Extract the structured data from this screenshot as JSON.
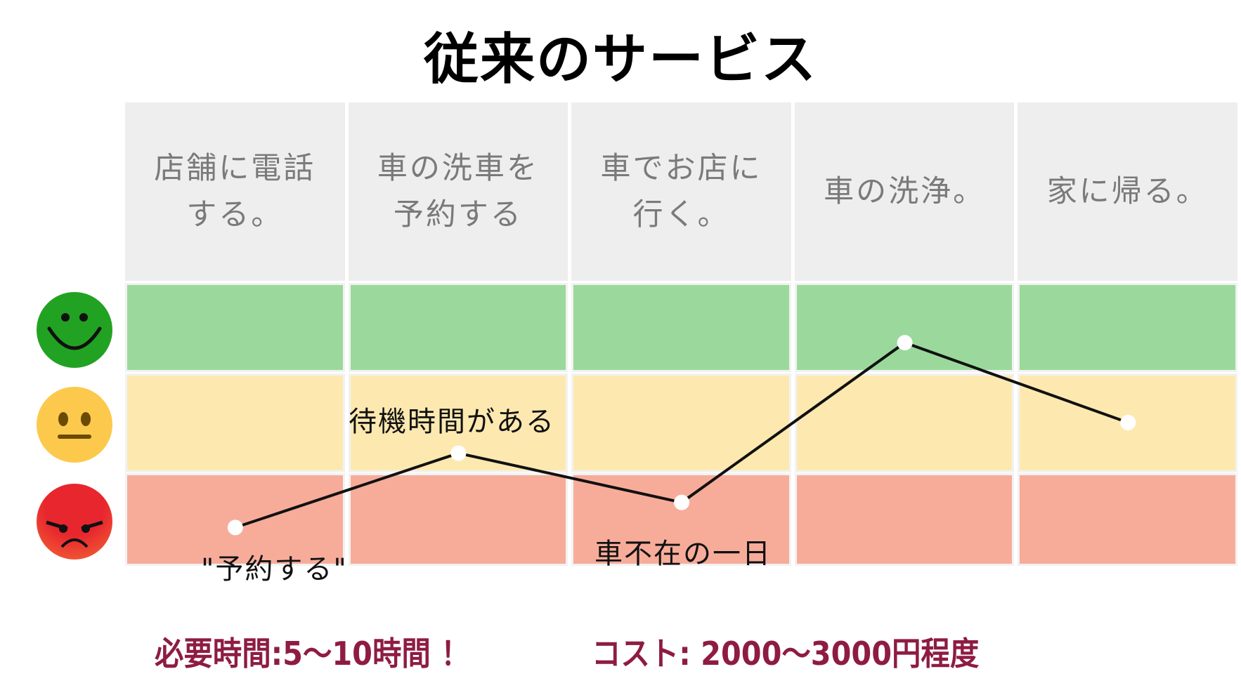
{
  "title": "従来のサービス",
  "steps": [
    {
      "label": "店舗に電話\nする。",
      "satisfaction": 0.39
    },
    {
      "label": "車の洗車を\n予約する",
      "satisfaction": 1.19
    },
    {
      "label": "車でお店に\n行く。",
      "satisfaction": 0.66
    },
    {
      "label": "車の洗浄。",
      "satisfaction": 2.38
    },
    {
      "label": "家に帰る。",
      "satisfaction": 1.52
    }
  ],
  "levels": [
    {
      "name": "happy",
      "icon": "smiley-happy-icon",
      "color": "#9ad99b"
    },
    {
      "name": "neutral",
      "icon": "smiley-neutral-icon",
      "color": "#fde9b0"
    },
    {
      "name": "angry",
      "icon": "smiley-angry-icon",
      "color": "#f7ac9a"
    }
  ],
  "annotations": {
    "wait": "待機時間がある",
    "reserve": "\"予約する\"",
    "no_car": "車不在の一日"
  },
  "footer": {
    "time": "必要時間:5〜10時間 ！",
    "cost": "コスト: 2000〜3000円程度"
  },
  "colors": {
    "accent": "#8e1c42",
    "line": "#111111",
    "point": "#ffffff"
  }
}
